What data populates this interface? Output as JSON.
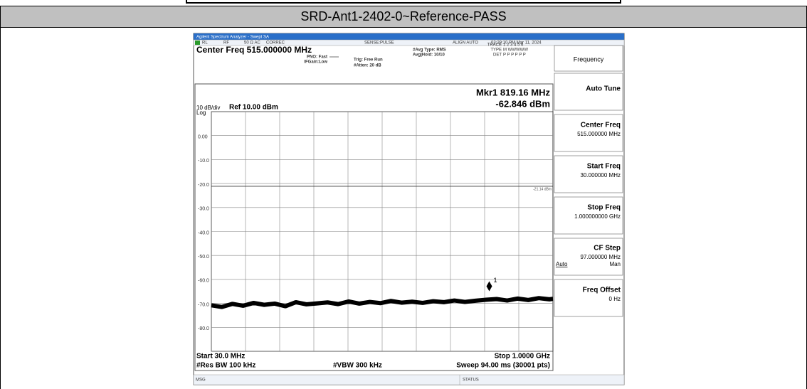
{
  "header": {
    "title": "SRD-Ant1-2402-0~Reference-PASS"
  },
  "analyzer": {
    "app_title": "Agilent Spectrum Analyzer - Swept SA",
    "status": [
      "RL",
      "RF",
      "50 Ω  AC",
      "CORREC",
      "SENSE:PULSE",
      "ALIGN AUTO",
      "03:29:10 PM Mar 11, 2024"
    ],
    "center_freq": "Center Freq 515.000000 MHz",
    "settings": [
      "PNO: Fast",
      "IFGain:Low",
      "Trig: Free Run",
      "#Atten: 20 dB",
      "#Avg Type: RMS",
      "Avg|Hold: 10/10"
    ],
    "trace_info": [
      [
        "TRACE",
        "1 2 3 4 5 6"
      ],
      [
        "TYPE",
        "M WWWWW"
      ],
      [
        "DET",
        "P P P P P P"
      ]
    ],
    "marker_readout": [
      "Mkr1 819.16 MHz",
      "-62.846 dBm"
    ],
    "scale": [
      "10 dB/div",
      "Ref 10.00 dBm",
      "Log"
    ],
    "footer": [
      "Start 30.0 MHz",
      "Stop 1.0000 GHz",
      "#Res BW 100 kHz",
      "#VBW 300 kHz",
      "Sweep  94.00 ms (30001 pts)"
    ],
    "msg": "MSG",
    "status_label": "STATUS",
    "softkeys": [
      {
        "title": "Frequency"
      },
      {
        "title": "Auto Tune"
      },
      {
        "title": "Center Freq",
        "value": "515.000000 MHz"
      },
      {
        "title": "Start Freq",
        "value": "30.000000 MHz"
      },
      {
        "title": "Stop Freq",
        "value": "1.000000000 GHz"
      },
      {
        "title": "CF Step",
        "value": "97.000000 MHz",
        "options": [
          "Auto",
          "Man"
        ]
      },
      {
        "title": "Freq Offset",
        "value": "0 Hz"
      }
    ]
  },
  "chart_data": {
    "type": "line",
    "color": "#000000",
    "x": [
      30,
      60,
      90,
      120,
      150,
      180,
      210,
      240,
      270,
      300,
      330,
      360,
      390,
      420,
      450,
      480,
      510,
      540,
      570,
      600,
      630,
      660,
      690,
      720,
      750,
      780,
      810,
      840,
      870,
      900,
      930,
      960,
      990,
      1000
    ],
    "values": [
      -70.8,
      -71.5,
      -70.2,
      -71.0,
      -69.8,
      -70.6,
      -70.1,
      -71.2,
      -69.5,
      -70.4,
      -70.0,
      -69.6,
      -70.3,
      -69.2,
      -70.1,
      -69.4,
      -69.9,
      -69.0,
      -69.7,
      -69.3,
      -69.8,
      -69.1,
      -69.5,
      -68.8,
      -69.4,
      -68.9,
      -68.5,
      -68.2,
      -68.8,
      -68.0,
      -68.6,
      -67.8,
      -68.3,
      -68.1
    ],
    "xlim": [
      30,
      1000
    ],
    "ylim": [
      -90,
      10
    ],
    "yticks": [
      {
        "value": 0,
        "label": "0.00"
      },
      {
        "value": -10,
        "label": "-10.0"
      },
      {
        "value": -20,
        "label": "-20.0"
      },
      {
        "value": -30,
        "label": "-30.0"
      },
      {
        "value": -40,
        "label": "-40.0"
      },
      {
        "value": -50,
        "label": "-50.0"
      },
      {
        "value": -60,
        "label": "-60.0"
      },
      {
        "value": -70,
        "label": "-70.0"
      },
      {
        "value": -80,
        "label": "-80.0"
      }
    ],
    "grid": true,
    "limit_line": {
      "value": -21.14,
      "label": "-21.14 dBm"
    },
    "marker": {
      "x": 819.16,
      "value": -62.846,
      "label": "1"
    }
  }
}
